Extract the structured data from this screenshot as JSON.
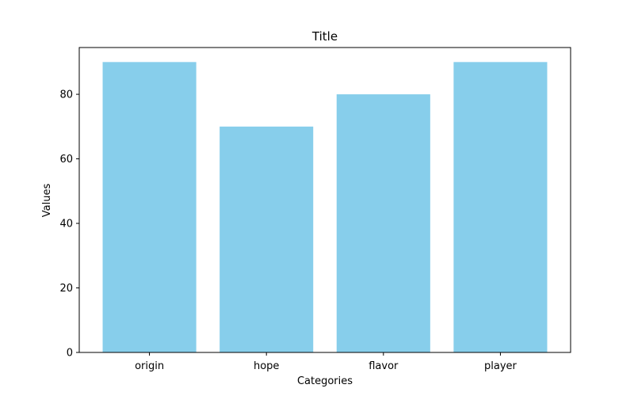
{
  "chart_data": {
    "type": "bar",
    "title": "Title",
    "xlabel": "Categories",
    "ylabel": "Values",
    "categories": [
      "origin",
      "hope",
      "flavor",
      "player"
    ],
    "values": [
      90,
      70,
      80,
      90
    ],
    "ylim": [
      0,
      94.5
    ],
    "yticks": [
      0,
      20,
      40,
      60,
      80
    ],
    "grid": false,
    "bar_color": "#87ceeb"
  }
}
